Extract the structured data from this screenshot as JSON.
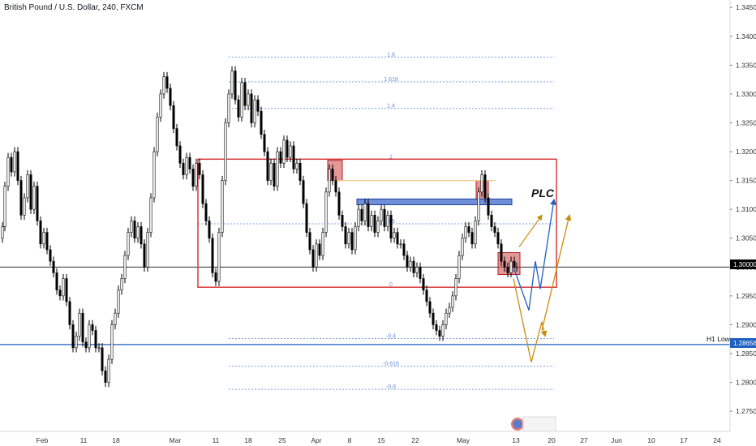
{
  "header": {
    "symbol_title": "British Pound / U.S. Dollar, 240, FXCM"
  },
  "chart_data": {
    "type": "candlestick",
    "title": "British Pound / U.S. Dollar, 240, FXCM",
    "y_axis": {
      "range": [
        1.2715,
        1.3463
      ],
      "ticks": [
        "1.34500",
        "1.34000",
        "1.33500",
        "1.33000",
        "1.32500",
        "1.32000",
        "1.31500",
        "1.31000",
        "1.30500",
        "1.30000",
        "1.29500",
        "1.29000",
        "1.28500",
        "1.28000",
        "1.27500"
      ],
      "tick_values": [
        1.345,
        1.34,
        1.335,
        1.33,
        1.325,
        1.32,
        1.315,
        1.31,
        1.305,
        1.3,
        1.295,
        1.29,
        1.285,
        1.28,
        1.275
      ]
    },
    "x_axis": {
      "labels": [
        "Feb",
        "11",
        "18",
        "Mar",
        "11",
        "18",
        "25",
        "Apr",
        "8",
        "15",
        "22",
        "May",
        "13",
        "20",
        "27",
        "Jun",
        "10",
        "17",
        "24"
      ]
    },
    "current_price": {
      "label": "1.30000",
      "value": 1.3
    },
    "h1_low": {
      "text": "H1 Low",
      "label": "1.28656",
      "value": 1.28656
    },
    "fib_levels": [
      {
        "label": "1.8",
        "value": 1.3364
      },
      {
        "label": "1.618",
        "value": 1.3321
      },
      {
        "label": "1.4",
        "value": 1.3275
      },
      {
        "label": "1",
        "value": 1.3187
      },
      {
        "label": "0.5",
        "value": 1.3075
      },
      {
        "label": "0",
        "value": 1.2965
      },
      {
        "label": "-0.4",
        "value": 1.2876
      },
      {
        "label": "-0.618",
        "value": 1.2828
      },
      {
        "label": "-0.8",
        "value": 1.2788
      }
    ],
    "annotations": {
      "plc_label": "PLC",
      "range_box": {
        "high": 1.3187,
        "low": 1.2965
      },
      "supply_zones": [
        {
          "high": 1.3185,
          "low": 1.315
        },
        {
          "high": 1.315,
          "low": 1.3117
        },
        {
          "high": 1.3025,
          "low": 1.2987
        }
      ],
      "resistance_band": {
        "high": 1.3118,
        "low": 1.3108
      },
      "orange_line": 1.315,
      "grid": false,
      "legend": "none"
    },
    "price_path": [
      [
        0,
        1.305
      ],
      [
        3,
        1.307
      ],
      [
        6,
        1.314
      ],
      [
        10,
        1.319
      ],
      [
        14,
        1.3165
      ],
      [
        18,
        1.32
      ],
      [
        22,
        1.315
      ],
      [
        26,
        1.309
      ],
      [
        30,
        1.312
      ],
      [
        34,
        1.316
      ],
      [
        38,
        1.31
      ],
      [
        42,
        1.314
      ],
      [
        46,
        1.308
      ],
      [
        50,
        1.304
      ],
      [
        54,
        1.306
      ],
      [
        58,
        1.303
      ],
      [
        62,
        1.301
      ],
      [
        66,
        1.299
      ],
      [
        70,
        1.296
      ],
      [
        74,
        1.295
      ],
      [
        78,
        1.298
      ],
      [
        82,
        1.294
      ],
      [
        86,
        1.29
      ],
      [
        90,
        1.286
      ],
      [
        94,
        1.288
      ],
      [
        98,
        1.292
      ],
      [
        102,
        1.287
      ],
      [
        106,
        1.286
      ],
      [
        110,
        1.29
      ],
      [
        114,
        1.289
      ],
      [
        118,
        1.286
      ],
      [
        122,
        1.286
      ],
      [
        126,
        1.282
      ],
      [
        130,
        1.28
      ],
      [
        134,
        1.284
      ],
      [
        138,
        1.29
      ],
      [
        142,
        1.292
      ],
      [
        146,
        1.296
      ],
      [
        150,
        1.298
      ],
      [
        154,
        1.302
      ],
      [
        158,
        1.306
      ],
      [
        162,
        1.308
      ],
      [
        166,
        1.305
      ],
      [
        170,
        1.307
      ],
      [
        174,
        1.304
      ],
      [
        178,
        1.3
      ],
      [
        182,
        1.306
      ],
      [
        186,
        1.312
      ],
      [
        190,
        1.32
      ],
      [
        194,
        1.326
      ],
      [
        198,
        1.33
      ],
      [
        202,
        1.333
      ],
      [
        206,
        1.331
      ],
      [
        210,
        1.328
      ],
      [
        214,
        1.324
      ],
      [
        218,
        1.321
      ],
      [
        222,
        1.318
      ],
      [
        226,
        1.316
      ],
      [
        230,
        1.319
      ],
      [
        234,
        1.317
      ],
      [
        238,
        1.314
      ],
      [
        242,
        1.318
      ],
      [
        246,
        1.316
      ],
      [
        250,
        1.311
      ],
      [
        254,
        1.308
      ],
      [
        258,
        1.305
      ],
      [
        262,
        1.299
      ],
      [
        266,
        1.2975
      ],
      [
        270,
        1.306
      ],
      [
        274,
        1.315
      ],
      [
        278,
        1.325
      ],
      [
        282,
        1.33
      ],
      [
        286,
        1.334
      ],
      [
        290,
        1.329
      ],
      [
        294,
        1.326
      ],
      [
        298,
        1.332
      ],
      [
        302,
        1.328
      ],
      [
        306,
        1.33
      ],
      [
        310,
        1.325
      ],
      [
        314,
        1.329
      ],
      [
        318,
        1.327
      ],
      [
        322,
        1.323
      ],
      [
        326,
        1.32
      ],
      [
        330,
        1.315
      ],
      [
        334,
        1.318
      ],
      [
        338,
        1.314
      ],
      [
        342,
        1.32
      ],
      [
        346,
        1.318
      ],
      [
        350,
        1.322
      ],
      [
        354,
        1.319
      ],
      [
        358,
        1.321
      ],
      [
        362,
        1.317
      ],
      [
        366,
        1.318
      ],
      [
        370,
        1.315
      ],
      [
        374,
        1.311
      ],
      [
        378,
        1.306
      ],
      [
        382,
        1.303
      ],
      [
        386,
        1.3
      ],
      [
        390,
        1.304
      ],
      [
        394,
        1.302
      ],
      [
        398,
        1.306
      ],
      [
        402,
        1.313
      ],
      [
        406,
        1.317
      ],
      [
        410,
        1.315
      ],
      [
        414,
        1.313
      ],
      [
        418,
        1.309
      ],
      [
        422,
        1.307
      ],
      [
        426,
        1.304
      ],
      [
        430,
        1.306
      ],
      [
        434,
        1.303
      ],
      [
        438,
        1.307
      ],
      [
        442,
        1.31
      ],
      [
        446,
        1.308
      ],
      [
        450,
        1.311
      ],
      [
        454,
        1.307
      ],
      [
        458,
        1.309
      ],
      [
        462,
        1.306
      ],
      [
        466,
        1.308
      ],
      [
        470,
        1.31
      ],
      [
        474,
        1.307
      ],
      [
        478,
        1.309
      ],
      [
        482,
        1.305
      ],
      [
        486,
        1.306
      ],
      [
        490,
        1.304
      ],
      [
        494,
        1.304
      ],
      [
        498,
        1.302
      ],
      [
        502,
        1.3
      ],
      [
        506,
        1.301
      ],
      [
        510,
        1.299
      ],
      [
        514,
        1.3
      ],
      [
        518,
        1.298
      ],
      [
        522,
        1.296
      ],
      [
        526,
        1.294
      ],
      [
        530,
        1.292
      ],
      [
        534,
        1.29
      ],
      [
        538,
        1.289
      ],
      [
        542,
        1.288
      ],
      [
        546,
        1.29
      ],
      [
        550,
        1.292
      ],
      [
        554,
        1.293
      ],
      [
        558,
        1.295
      ],
      [
        562,
        1.298
      ],
      [
        566,
        1.302
      ],
      [
        570,
        1.305
      ],
      [
        574,
        1.307
      ],
      [
        578,
        1.306
      ],
      [
        582,
        1.304
      ],
      [
        586,
        1.308
      ],
      [
        590,
        1.313
      ],
      [
        594,
        1.316
      ],
      [
        598,
        1.312
      ],
      [
        602,
        1.309
      ],
      [
        606,
        1.307
      ],
      [
        610,
        1.306
      ],
      [
        614,
        1.304
      ],
      [
        618,
        1.301
      ],
      [
        622,
        1.3
      ],
      [
        626,
        1.299
      ],
      [
        630,
        1.301
      ],
      [
        634,
        1.3
      ],
      [
        637,
        1.3
      ]
    ],
    "projections": {
      "blue_path": [
        [
          633,
          1.3
        ],
        [
          652,
          1.2925
        ],
        [
          660,
          1.301
        ],
        [
          666,
          1.2962
        ],
        [
          683,
          1.3117
        ]
      ],
      "orange_path_a": [
        [
          633,
          1.298
        ],
        [
          655,
          1.2835
        ],
        [
          668,
          1.2905
        ],
        [
          672,
          1.288
        ]
      ],
      "orange_path_b": [
        [
          668,
          1.289
        ],
        [
          702,
          1.309
        ]
      ],
      "orange_arrow_small": [
        [
          640,
          1.3035
        ],
        [
          668,
          1.309
        ]
      ]
    }
  }
}
